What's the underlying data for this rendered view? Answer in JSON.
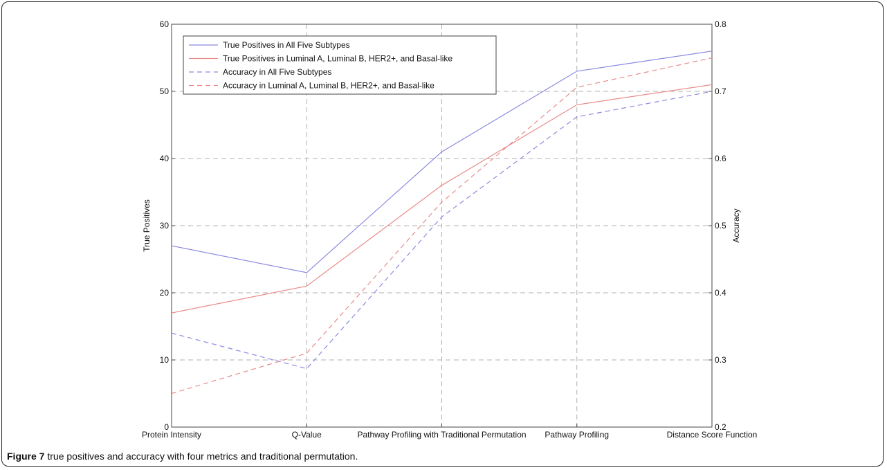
{
  "caption": {
    "label": "Figure 7",
    "text": " true positives and accuracy with four metrics and traditional permutation",
    "period": "."
  },
  "colors": {
    "blue": "#8a8ae0",
    "red": "#e88a8a",
    "grid": "#b0b0b0",
    "axis": "#444444"
  },
  "chart_data": {
    "type": "line",
    "categories": [
      "Protein Intensity",
      "Q-Value",
      "Pathway Profiling with Traditional Permutation",
      "Pathway Profiling",
      "Distance Score Function"
    ],
    "ylabel": "True Positives",
    "y2label": "Accuracy",
    "ylim": [
      0,
      60
    ],
    "y2lim": [
      0.2,
      0.8
    ],
    "yticks": [
      "0",
      "10",
      "20",
      "30",
      "40",
      "50",
      "60"
    ],
    "y2ticks": [
      "0.2",
      "0.3",
      "0.4",
      "0.5",
      "0.6",
      "0.7",
      "0.8"
    ],
    "grid": true,
    "legend_position": "top-left",
    "series": [
      {
        "name": "True Positives in All Five Subtypes",
        "axis": "left",
        "style": "solid",
        "color": "blue",
        "values": [
          27,
          23,
          41,
          53,
          56
        ]
      },
      {
        "name": "True Positives in Luminal A, Luminal B, HER2+, and Basal-like",
        "axis": "left",
        "style": "solid",
        "color": "red",
        "values": [
          17,
          21,
          36,
          48,
          51
        ]
      },
      {
        "name": "Accuracy in All Five Subtypes",
        "axis": "right",
        "style": "dashed",
        "color": "blue",
        "values": [
          0.34,
          0.287,
          0.513,
          0.662,
          0.7
        ]
      },
      {
        "name": "Accuracy in Luminal A, Luminal B, HER2+, and Basal-like",
        "axis": "right",
        "style": "dashed",
        "color": "red",
        "values": [
          0.25,
          0.31,
          0.535,
          0.706,
          0.75
        ]
      }
    ]
  }
}
